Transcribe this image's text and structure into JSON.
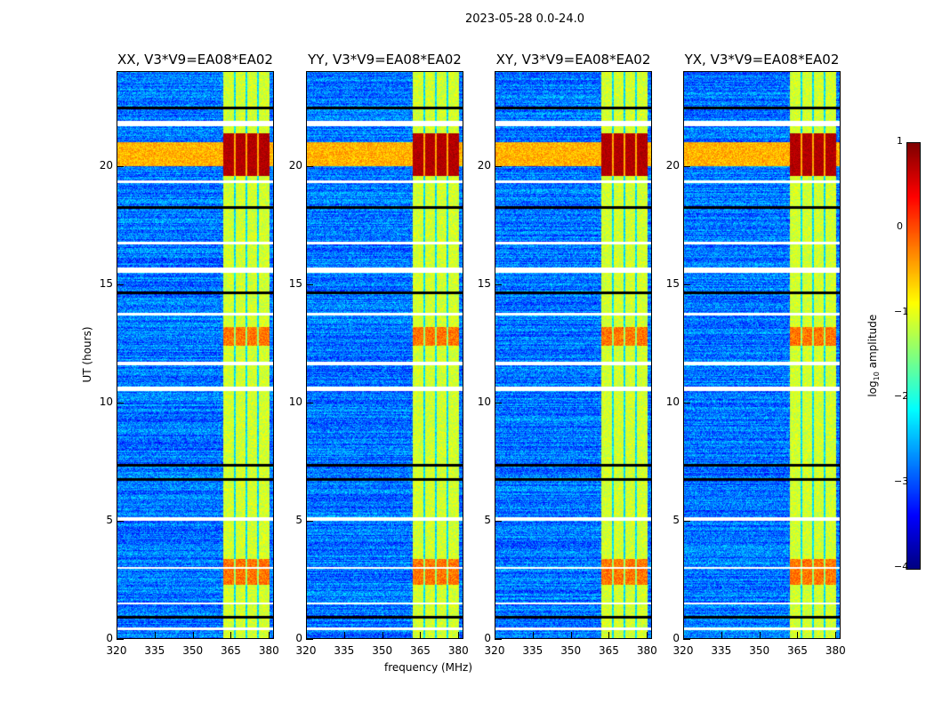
{
  "chart_data": {
    "type": "heatmap",
    "title": "2023-05-28 0.0-24.0",
    "xlabel": "frequency (MHz)",
    "ylabel": "UT (hours)",
    "xlim": [
      320,
      382
    ],
    "ylim": [
      0,
      24
    ],
    "xticks": [
      "320",
      "335",
      "350",
      "365",
      "380"
    ],
    "yticks": [
      "0",
      "5",
      "10",
      "15",
      "20"
    ],
    "panels": [
      {
        "title": "XX, V3*V9=EA08*EA02"
      },
      {
        "title": "YY, V3*V9=EA08*EA02"
      },
      {
        "title": "XY, V3*V9=EA08*EA02"
      },
      {
        "title": "YX, V3*V9=EA08*EA02"
      }
    ],
    "colorbar": {
      "label": "log10 amplitude",
      "label_main": "log",
      "label_sub": "10",
      "label_tail": " amplitude",
      "range": [
        -4,
        1
      ],
      "ticks": [
        "1",
        "0",
        "−1",
        "−2",
        "−3",
        "−4"
      ],
      "colormap": "jet"
    },
    "features": {
      "background_level": -2.8,
      "rfi_band_mhz": [
        362,
        380
      ],
      "rfi_band_level": -1.1,
      "band_gaps_mhz": [
        366.5,
        371,
        375.5
      ],
      "strong_rfi_hours": [
        [
          19.6,
          21.4
        ]
      ],
      "moderate_rfi_hours": [
        [
          12.4,
          13.2
        ],
        [
          2.3,
          3.4
        ]
      ],
      "flagged_hours": [
        [
          21.7,
          21.9
        ],
        [
          15.5,
          15.7
        ],
        [
          11.6,
          11.75
        ],
        [
          10.5,
          10.7
        ],
        [
          5.0,
          5.15
        ],
        [
          0.4,
          0.5
        ],
        [
          19.3,
          19.4
        ],
        [
          16.7,
          16.8
        ],
        [
          13.7,
          13.8
        ],
        [
          3.0,
          3.05
        ],
        [
          1.5,
          1.55
        ]
      ],
      "dark_hours": [
        [
          22.4,
          22.5
        ],
        [
          18.2,
          18.3
        ],
        [
          14.6,
          14.7
        ],
        [
          7.3,
          7.4
        ],
        [
          6.7,
          6.8
        ],
        [
          0.9,
          1.0
        ]
      ]
    }
  }
}
